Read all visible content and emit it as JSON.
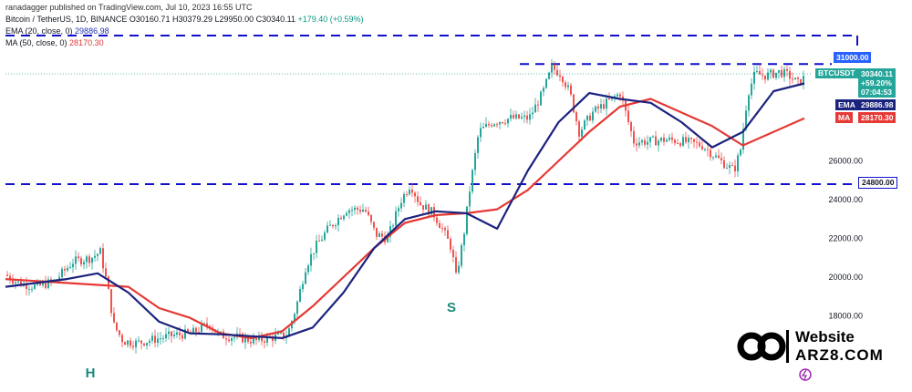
{
  "publisher": "ranadagger published on TradingView.com, Jul 10, 2023 16:55 UTC",
  "legend": {
    "symbol": "Bitcoin / TetherUS, 1D, BINANCE",
    "open": "O30160.71",
    "high": "H30379.29",
    "low": "L29950.00",
    "close": "C30340.11",
    "change": "+179.40 (+0.59%)",
    "ema_label": "EMA (20, close, 0)",
    "ema_value": "29886.98",
    "ma_label": "MA (50, close, 0)",
    "ma_value": "28170.30"
  },
  "price_tags": {
    "symbol": "BTCUSDT",
    "price": "30340.11",
    "change_pct": "+59.20%",
    "countdown": "07:04:53",
    "ema_name": "EMA",
    "ema_value": "29886.98",
    "ma_name": "MA",
    "ma_value": "28170.30",
    "level_31000": "31000.00",
    "level_24800": "24800.00"
  },
  "annotations": {
    "head": "H",
    "shoulder": "S"
  },
  "watermark": {
    "line1": "Website",
    "line2": "ARZ8.COM"
  },
  "colors": {
    "up": "#26a69a",
    "down": "#ef5350",
    "ema": "#1a237e",
    "ma": "#e53935",
    "level": "#1111cc",
    "tag_blue": "#2962ff",
    "tag_navy": "#1a237e",
    "tag_red": "#e53935",
    "tag_green": "#26a69a",
    "annotation": "#1b8a7a"
  },
  "chart_data": {
    "type": "candlestick",
    "y_ticks": [
      18000,
      20000,
      22000,
      24000,
      26000
    ],
    "y_tick_labels": [
      "18000.00",
      "20000.00",
      "22000.00",
      "24000.00",
      "26000.00"
    ],
    "ylim": [
      16000,
      33000
    ],
    "levels": [
      31000,
      24800
    ],
    "series": [
      {
        "name": "EMA (20, close, 0)",
        "values": [
          19500,
          19700,
          19900,
          20200,
          19200,
          17700,
          17100,
          17050,
          16950,
          16850,
          17400,
          19200,
          21500,
          23000,
          23400,
          23300,
          22500,
          25500,
          28000,
          29500,
          29200,
          29000,
          28000,
          26700,
          27500,
          29600,
          30000
        ]
      },
      {
        "name": "MA (50, close, 0)",
        "values": [
          19900,
          19800,
          19700,
          19600,
          19500,
          18400,
          17900,
          17100,
          16850,
          17200,
          18500,
          20000,
          21500,
          22800,
          23200,
          23300,
          23500,
          24500,
          26000,
          27500,
          28800,
          29200,
          28500,
          27800,
          26800,
          27500,
          28200
        ]
      }
    ],
    "candles": []
  }
}
